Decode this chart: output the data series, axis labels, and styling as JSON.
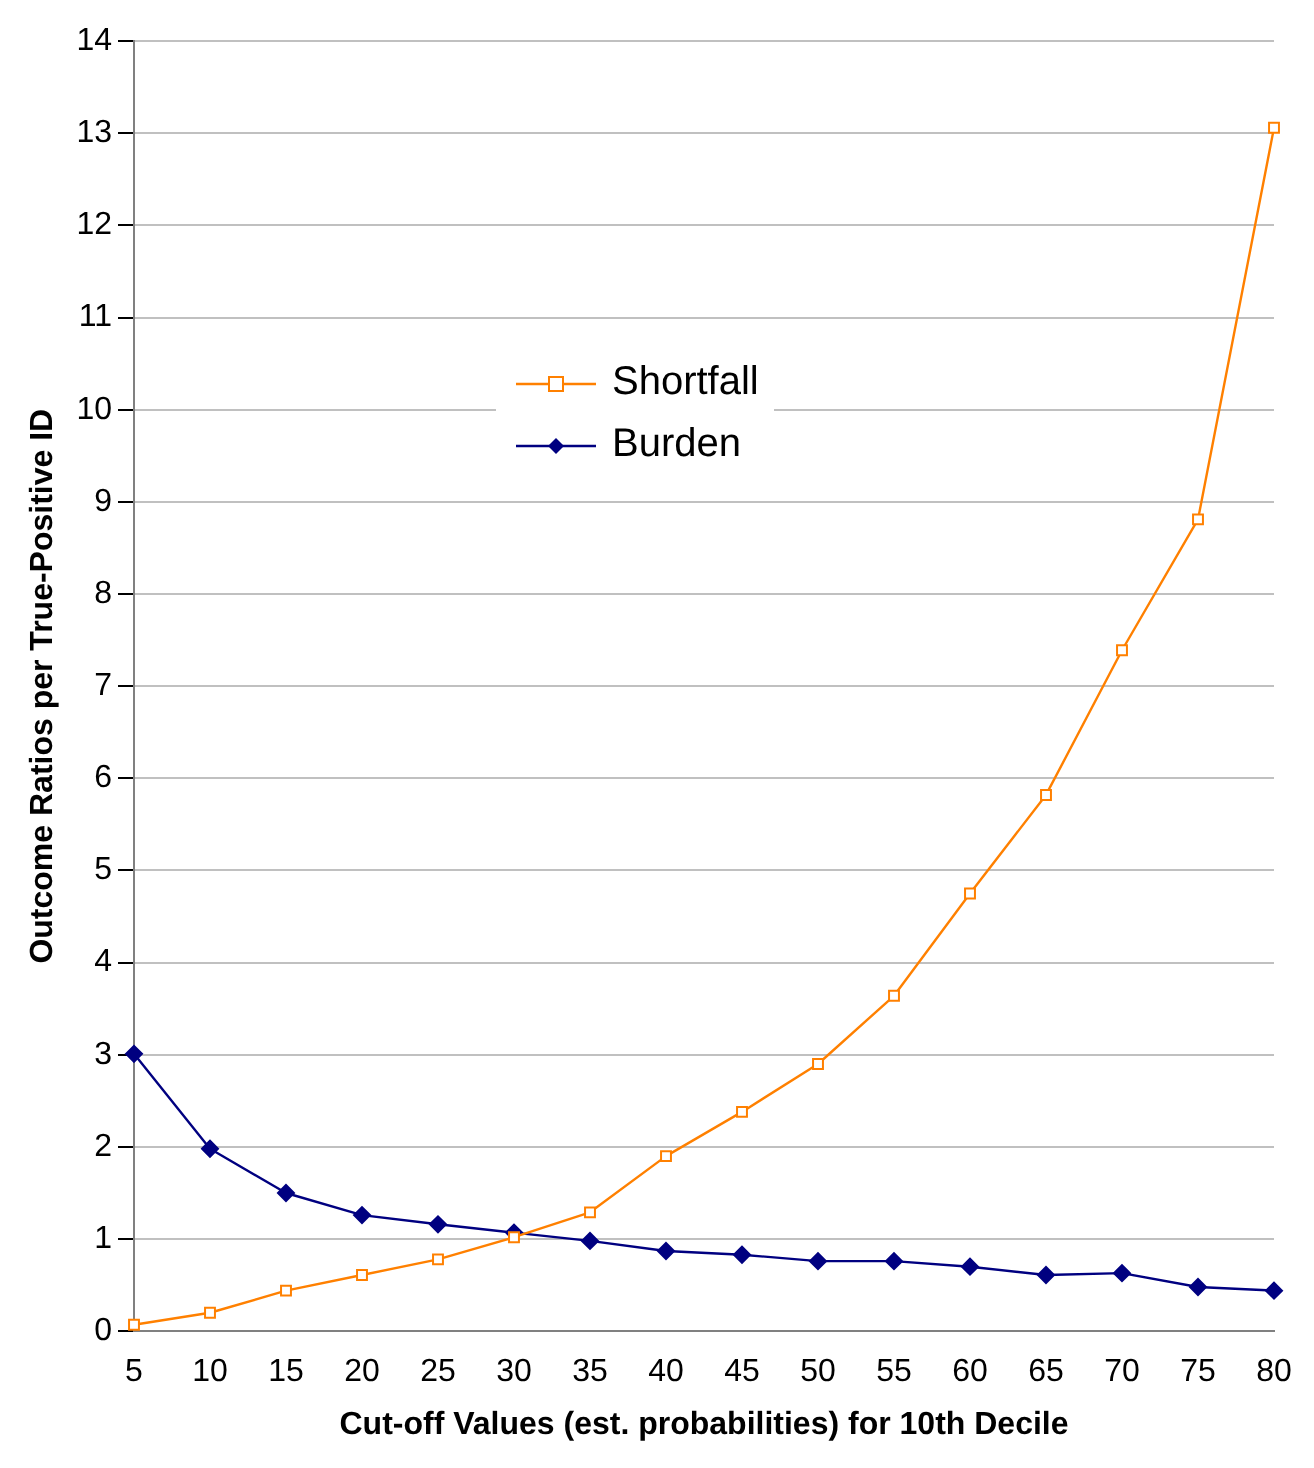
{
  "chart_data": {
    "type": "line",
    "xlabel": "Cut-off Values (est. probabilities) for 10th Decile",
    "ylabel": "Outcome Ratios per True-Positive ID",
    "categories": [
      "5",
      "10",
      "15",
      "20",
      "25",
      "30",
      "35",
      "40",
      "45",
      "50",
      "55",
      "60",
      "65",
      "70",
      "75",
      "80"
    ],
    "series": [
      {
        "name": "Shortfall",
        "color": "#ff8000",
        "marker": "square",
        "values": [
          0.07,
          0.2,
          0.44,
          0.61,
          0.78,
          1.02,
          1.29,
          1.9,
          2.38,
          2.9,
          3.64,
          4.75,
          5.82,
          7.39,
          8.81,
          13.06
        ]
      },
      {
        "name": "Burden",
        "color": "#000080",
        "marker": "diamond",
        "values": [
          3.01,
          1.98,
          1.5,
          1.26,
          1.16,
          1.07,
          0.98,
          0.87,
          0.83,
          0.76,
          0.76,
          0.7,
          0.61,
          0.63,
          0.48,
          0.44
        ]
      }
    ],
    "ylim": [
      0,
      14
    ],
    "yticks": [
      0,
      1,
      2,
      3,
      4,
      5,
      6,
      7,
      8,
      9,
      10,
      11,
      12,
      13,
      14
    ],
    "grid": "y",
    "legend": "top left",
    "line_style": "solid"
  }
}
